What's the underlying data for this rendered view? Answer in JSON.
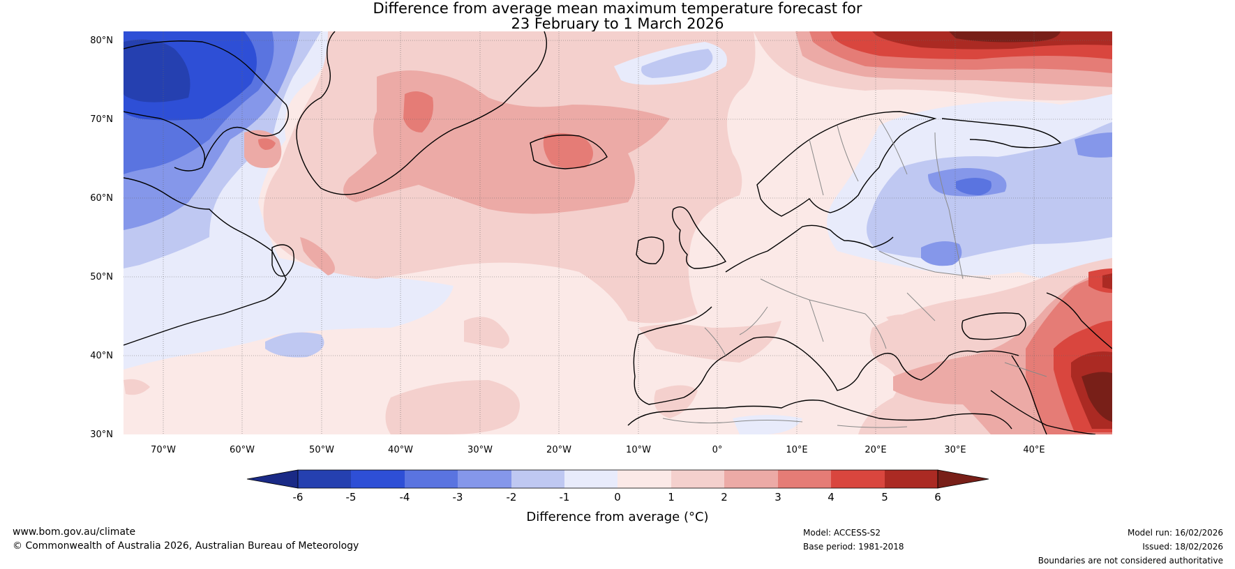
{
  "title": {
    "line1": "Difference from average mean maximum temperature forecast for",
    "line2": "23 February to 1 March 2026"
  },
  "axes": {
    "latitudes": [
      "80°N",
      "70°N",
      "60°N",
      "50°N",
      "40°N",
      "30°N"
    ],
    "longitudes": [
      "70°W",
      "60°W",
      "50°W",
      "40°W",
      "30°W",
      "20°W",
      "10°W",
      "0°",
      "10°E",
      "20°E",
      "30°E",
      "40°E"
    ]
  },
  "colorbar": {
    "ticks": [
      "-6",
      "-5",
      "-4",
      "-3",
      "-2",
      "-1",
      "0",
      "1",
      "2",
      "3",
      "4",
      "5",
      "6"
    ],
    "label": "Difference from average (°C)",
    "colors": {
      "under": "#1a2a86",
      "m6_m5": "#2540b0",
      "m5_m4": "#2e4fd6",
      "m4_m3": "#5a74e0",
      "m3_m2": "#8597ea",
      "m2_m1": "#bfc8f2",
      "m1_0": "#e8ebfb",
      "p0_1": "#fbe9e7",
      "p1_2": "#f4d0cd",
      "p2_3": "#ecaaa6",
      "p3_4": "#e57c76",
      "p4_5": "#d9463e",
      "p5_6": "#ab2a23",
      "over": "#781f18"
    }
  },
  "footer": {
    "website": "www.bom.gov.au/climate",
    "copyright": "© Commonwealth of Australia 2026, Australian Bureau of Meteorology",
    "model": "Model: ACCESS-S2",
    "base_period": "Base period: 1981-2018",
    "model_run": "Model run: 16/02/2026",
    "issued": "Issued: 18/02/2026",
    "disclaimer": "Boundaries are not considered authoritative"
  }
}
